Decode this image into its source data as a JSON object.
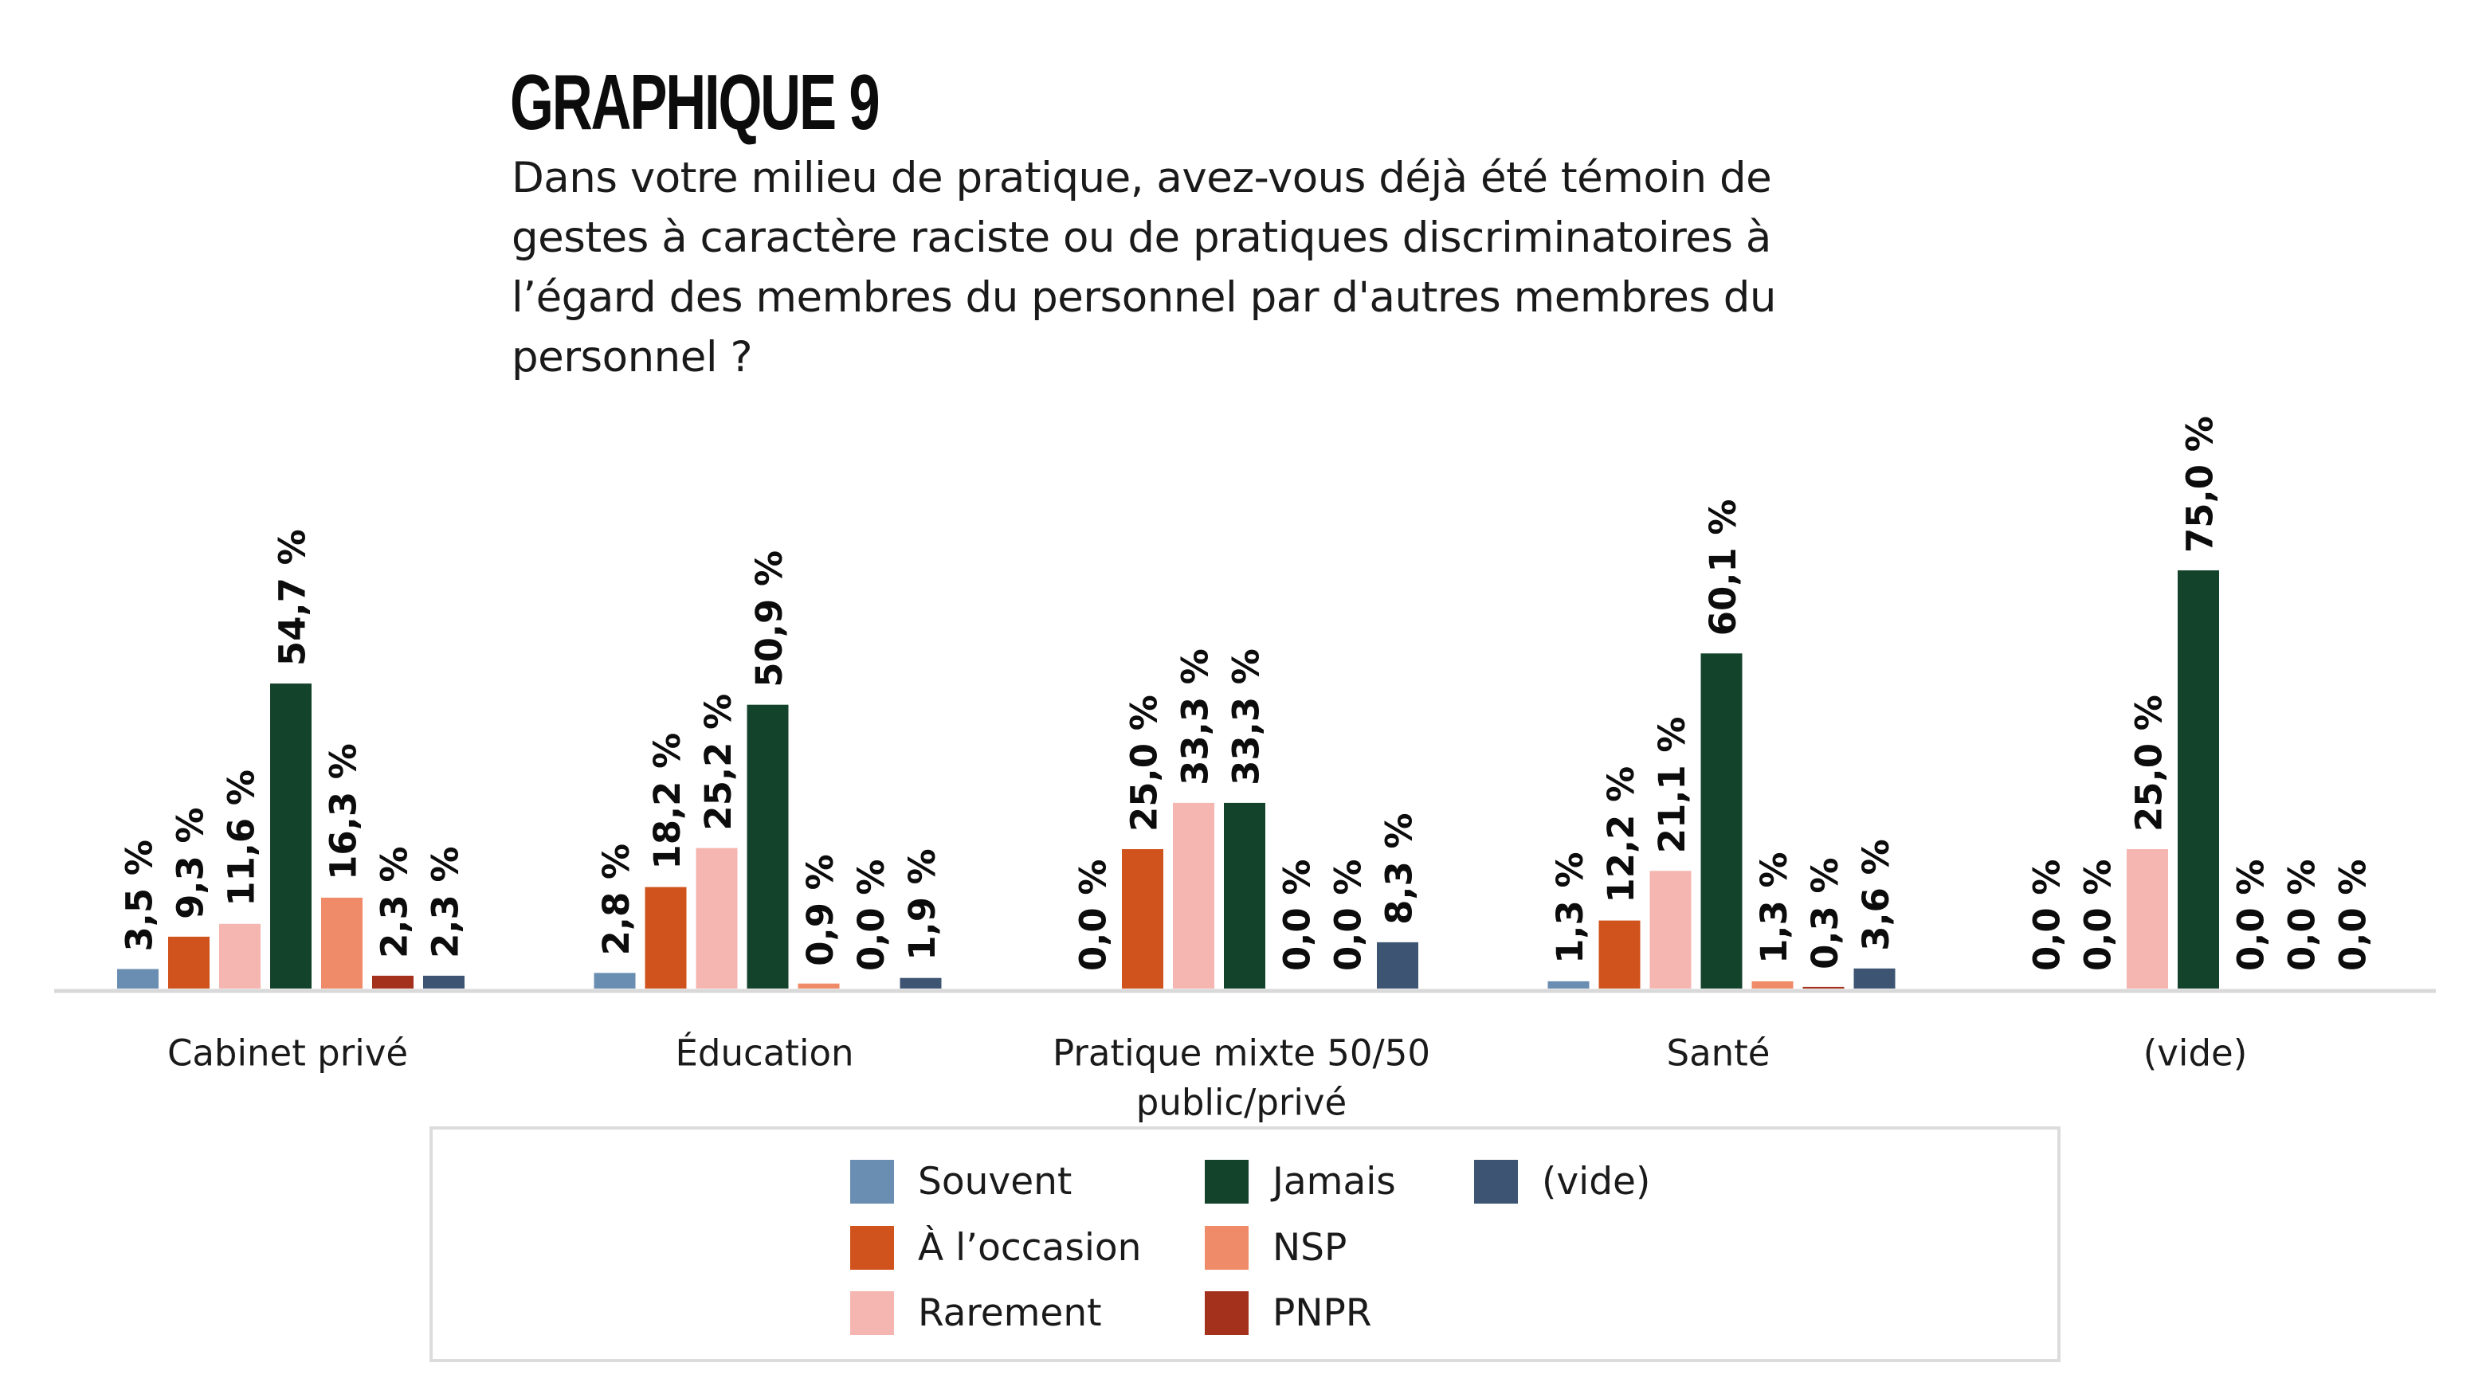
{
  "header": {
    "title": "GRAPHIQUE 9",
    "subtitle": "Dans votre milieu de pratique, avez-vous déjà été témoin de gestes à caractère raciste ou de pratiques discriminatoires à l’égard des membres du personnel par d'autres membres du personnel ?"
  },
  "chart_data": {
    "type": "bar",
    "title": "GRAPHIQUE 9",
    "subtitle": "Dans votre milieu de pratique, avez-vous déjà été témoin de gestes à caractère raciste ou de pratiques discriminatoires à l’égard des membres du personnel par d'autres membres du personnel ?",
    "xlabel": "",
    "ylabel": "",
    "ylim": [
      0,
      80
    ],
    "grid": false,
    "value_suffix": " %",
    "decimal_separator": ",",
    "categories": [
      "Cabinet privé",
      "Éducation",
      "Pratique mixte 50/50 public/privé",
      "Santé",
      "(vide)"
    ],
    "category_lines": [
      [
        "Cabinet privé"
      ],
      [
        "Éducation"
      ],
      [
        "Pratique mixte 50/50",
        "public/privé"
      ],
      [
        "Santé"
      ],
      [
        "(vide)"
      ]
    ],
    "series": [
      {
        "name": "Souvent",
        "color": "#6a8eb2",
        "values": [
          3.5,
          2.8,
          0.0,
          1.3,
          0.0
        ]
      },
      {
        "name": "À l’occasion",
        "color": "#d0521c",
        "values": [
          9.3,
          18.2,
          25.0,
          12.2,
          0.0
        ]
      },
      {
        "name": "Rarement",
        "color": "#f5b5b0",
        "values": [
          11.6,
          25.2,
          33.3,
          21.1,
          25.0
        ]
      },
      {
        "name": "Jamais",
        "color": "#14432c",
        "values": [
          54.7,
          50.9,
          33.3,
          60.1,
          75.0
        ]
      },
      {
        "name": "NSP",
        "color": "#f08b6a",
        "values": [
          16.3,
          0.9,
          0.0,
          1.3,
          0.0
        ]
      },
      {
        "name": "PNPR",
        "color": "#a3311c",
        "values": [
          2.3,
          0.0,
          0.0,
          0.3,
          0.0
        ]
      },
      {
        "name": "(vide)",
        "color": "#3d5573",
        "values": [
          2.3,
          1.9,
          8.3,
          3.6,
          0.0
        ]
      }
    ],
    "legend": {
      "placement": "bottom",
      "columns": [
        [
          "Souvent",
          "À l’occasion",
          "Rarement"
        ],
        [
          "Jamais",
          "NSP",
          "PNPR"
        ],
        [
          "(vide)"
        ]
      ]
    }
  }
}
